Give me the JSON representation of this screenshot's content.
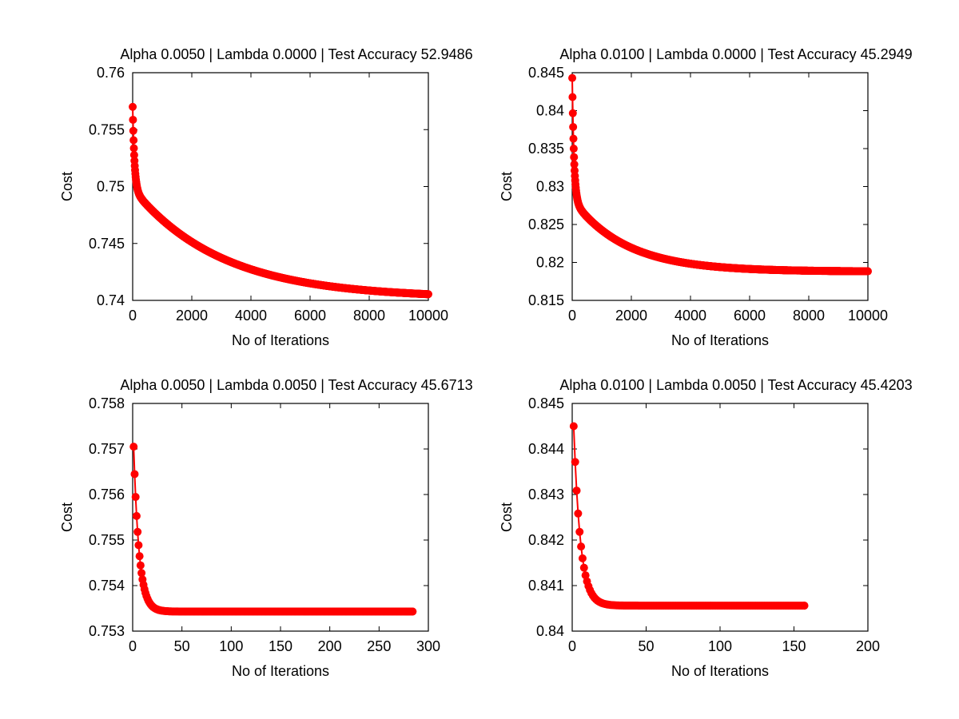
{
  "colors": {
    "series": "#ff0000",
    "axis": "#000000",
    "background": "#ffffff"
  },
  "chart_data": [
    {
      "id": "tl",
      "type": "line",
      "title": "Alpha 0.0050 | Lambda 0.0000 | Test Accuracy 52.9486",
      "xlabel": "No of Iterations",
      "ylabel": "Cost",
      "xlim": [
        0,
        10000
      ],
      "ylim": [
        0.74,
        0.76
      ],
      "xticks": [
        0,
        2000,
        4000,
        6000,
        8000,
        10000
      ],
      "xtick_labels": [
        "0",
        "2000",
        "4000",
        "6000",
        "8000",
        "10000"
      ],
      "yticks": [
        0.74,
        0.745,
        0.75,
        0.755,
        0.76
      ],
      "ytick_labels": [
        "0.74",
        "0.745",
        "0.75",
        "0.755",
        "0.76"
      ],
      "n_iterations": 10000,
      "curve": {
        "y_start": 0.757,
        "y_end": 0.7402,
        "fast_amp": 0.0072,
        "fast_tau": 60,
        "slow_tau": 3000
      },
      "series": [
        {
          "name": "Cost",
          "x": [
            1,
            20,
            50,
            100,
            200,
            500,
            1000,
            2000,
            3000,
            4000,
            6000,
            8000,
            10000
          ],
          "values": [
            0.757,
            0.7535,
            0.7505,
            0.7485,
            0.7475,
            0.7462,
            0.745,
            0.7432,
            0.7421,
            0.7414,
            0.7408,
            0.7404,
            0.7402
          ]
        }
      ]
    },
    {
      "id": "tr",
      "type": "line",
      "title": "Alpha 0.0100 | Lambda 0.0000 | Test Accuracy 45.2949",
      "xlabel": "No of Iterations",
      "ylabel": "Cost",
      "xlim": [
        0,
        10000
      ],
      "ylim": [
        0.815,
        0.845
      ],
      "xticks": [
        0,
        2000,
        4000,
        6000,
        8000,
        10000
      ],
      "xtick_labels": [
        "0",
        "2000",
        "4000",
        "6000",
        "8000",
        "10000"
      ],
      "yticks": [
        0.815,
        0.82,
        0.825,
        0.83,
        0.835,
        0.84,
        0.845
      ],
      "ytick_labels": [
        "0.815",
        "0.82",
        "0.825",
        "0.83",
        "0.835",
        "0.84",
        "0.845"
      ],
      "n_iterations": 10000,
      "curve": {
        "y_start": 0.8443,
        "y_end": 0.8188,
        "fast_amp": 0.016,
        "fast_tau": 60,
        "slow_tau": 1800
      },
      "series": [
        {
          "name": "Cost",
          "x": [
            1,
            20,
            50,
            100,
            200,
            500,
            1000,
            2000,
            3000,
            4000,
            6000,
            8000,
            10000
          ],
          "values": [
            0.8443,
            0.8385,
            0.8335,
            0.8305,
            0.8275,
            0.825,
            0.823,
            0.8212,
            0.82,
            0.8196,
            0.8191,
            0.8189,
            0.8188
          ]
        }
      ]
    },
    {
      "id": "bl",
      "type": "line",
      "title": "Alpha 0.0050 | Lambda 0.0050 | Test Accuracy 45.6713",
      "xlabel": "No of Iterations",
      "ylabel": "Cost",
      "xlim": [
        0,
        300
      ],
      "ylim": [
        0.753,
        0.758
      ],
      "xticks": [
        0,
        50,
        100,
        150,
        200,
        250,
        300
      ],
      "xtick_labels": [
        "0",
        "50",
        "100",
        "150",
        "200",
        "250",
        "300"
      ],
      "yticks": [
        0.753,
        0.754,
        0.755,
        0.756,
        0.757,
        0.758
      ],
      "ytick_labels": [
        "0.753",
        "0.754",
        "0.755",
        "0.756",
        "0.757",
        "0.758"
      ],
      "n_iterations": 284,
      "curve": {
        "y_start": 0.75705,
        "y_end": 0.75343,
        "fast_amp": 0.0,
        "fast_tau": 5.5,
        "slow_tau": 5.5
      },
      "series": [
        {
          "name": "Cost",
          "x": [
            1,
            2,
            3,
            4,
            5,
            6,
            8,
            10,
            15,
            20,
            30,
            50,
            100,
            200,
            284
          ],
          "values": [
            0.75705,
            0.756,
            0.75525,
            0.75485,
            0.75455,
            0.75435,
            0.7541,
            0.7539,
            0.7537,
            0.75355,
            0.75345,
            0.75343,
            0.75343,
            0.75343,
            0.75343
          ]
        }
      ]
    },
    {
      "id": "br",
      "type": "line",
      "title": "Alpha 0.0100 | Lambda 0.0050 | Test Accuracy 45.4203",
      "xlabel": "No of Iterations",
      "ylabel": "Cost",
      "xlim": [
        0,
        200
      ],
      "ylim": [
        0.84,
        0.845
      ],
      "xticks": [
        0,
        50,
        100,
        150,
        200
      ],
      "xtick_labels": [
        "0",
        "50",
        "100",
        "150",
        "200"
      ],
      "yticks": [
        0.84,
        0.841,
        0.842,
        0.843,
        0.844,
        0.845
      ],
      "ytick_labels": [
        "0.84",
        "0.841",
        "0.842",
        "0.843",
        "0.844",
        "0.845"
      ],
      "n_iterations": 157,
      "curve": {
        "y_start": 0.8445,
        "y_end": 0.84056,
        "fast_amp": 0.0,
        "fast_tau": 4.5,
        "slow_tau": 4.5
      },
      "series": [
        {
          "name": "Cost",
          "x": [
            1,
            2,
            3,
            4,
            5,
            6,
            8,
            10,
            15,
            20,
            30,
            50,
            100,
            157
          ],
          "values": [
            0.8445,
            0.843,
            0.8421,
            0.8417,
            0.8414,
            0.8412,
            0.841,
            0.8408,
            0.8407,
            0.84062,
            0.84057,
            0.84056,
            0.84056,
            0.84056
          ]
        }
      ]
    }
  ]
}
